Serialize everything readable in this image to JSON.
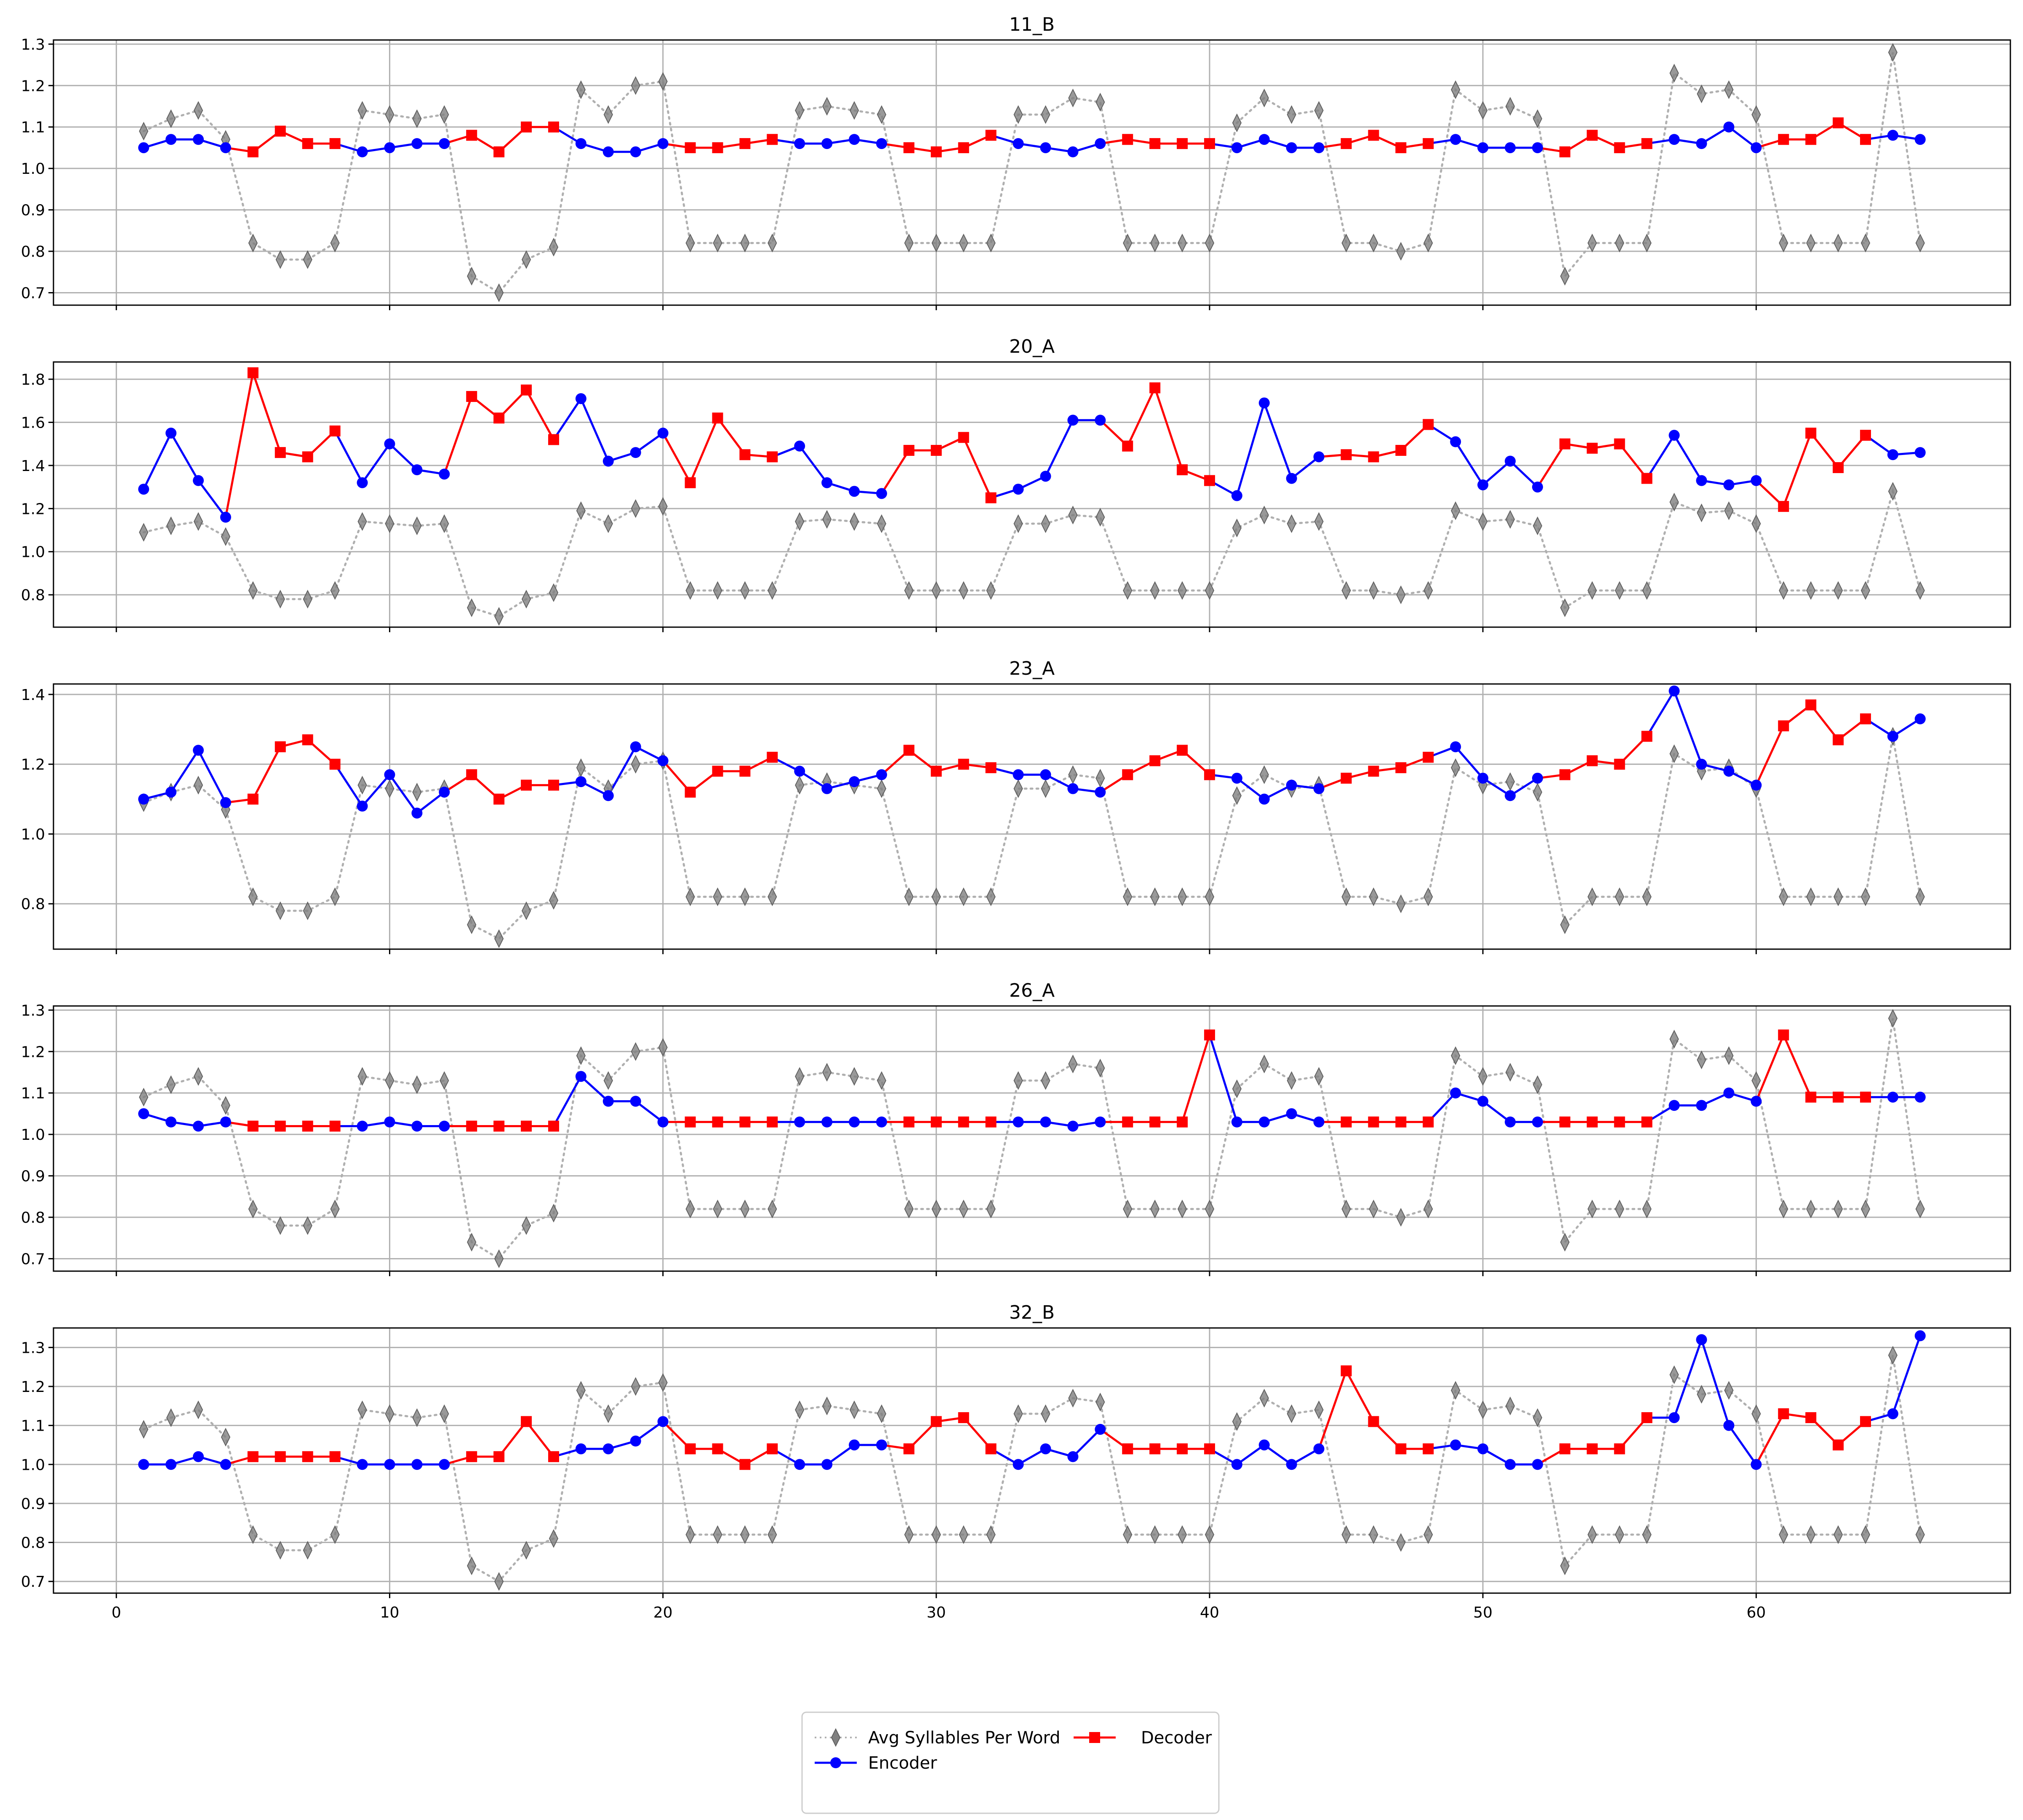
{
  "colors": {
    "avg": "#808080",
    "avg_line": "#b0b0b0",
    "encoder": "#0000ff",
    "decoder": "#ff0000",
    "grid": "#b0b0b0"
  },
  "legend": {
    "avg_label": "Avg Syllables Per Word",
    "encoder_label": "Encoder",
    "decoder_label": "Decoder",
    "placement": "bottom-center"
  },
  "chart_data": [
    {
      "type": "line",
      "title": "11_B",
      "ylim": [
        0.67,
        1.31
      ],
      "yticks": [
        0.7,
        0.8,
        0.9,
        1.0,
        1.1,
        1.2,
        1.3
      ],
      "xlim": [
        -2.3,
        69.3
      ],
      "xticks": [
        0,
        10,
        20,
        30,
        40,
        50,
        60
      ],
      "avg": [
        1.09,
        1.12,
        1.14,
        1.07,
        0.82,
        0.78,
        0.78,
        0.82,
        1.14,
        1.13,
        1.12,
        1.13,
        0.74,
        0.7,
        0.78,
        0.81,
        1.19,
        1.13,
        1.2,
        1.21,
        0.82,
        0.82,
        0.82,
        0.82,
        1.14,
        1.15,
        1.14,
        1.13,
        0.82,
        0.82,
        0.82,
        0.82,
        1.13,
        1.13,
        1.17,
        1.16,
        0.82,
        0.82,
        0.82,
        0.82,
        1.11,
        1.17,
        1.13,
        1.14,
        0.82,
        0.82,
        0.8,
        0.82,
        1.19,
        1.14,
        1.15,
        1.12,
        0.74,
        0.82,
        0.82,
        0.82,
        1.23,
        1.18,
        1.19,
        1.13,
        0.82,
        0.82,
        0.82,
        0.82,
        1.28,
        0.82
      ],
      "value": [
        1.05,
        1.07,
        1.07,
        1.05,
        1.04,
        1.09,
        1.06,
        1.06,
        1.04,
        1.05,
        1.06,
        1.06,
        1.08,
        1.04,
        1.1,
        1.1,
        1.06,
        1.04,
        1.04,
        1.06,
        1.05,
        1.05,
        1.06,
        1.07,
        1.06,
        1.06,
        1.07,
        1.06,
        1.05,
        1.04,
        1.05,
        1.08,
        1.06,
        1.05,
        1.04,
        1.06,
        1.07,
        1.06,
        1.06,
        1.06,
        1.05,
        1.07,
        1.05,
        1.05,
        1.06,
        1.08,
        1.05,
        1.06,
        1.07,
        1.05,
        1.05,
        1.05,
        1.04,
        1.08,
        1.05,
        1.06,
        1.07,
        1.06,
        1.1,
        1.05,
        1.07,
        1.07,
        1.11,
        1.07,
        1.08,
        1.07
      ],
      "role": "EEEEDDDDEEEEDDDDEEEEDDDDEEEEDDDDEEEEDDDDEEEEDDDDEEEEDDDDEEEEDDDDEE"
    },
    {
      "type": "line",
      "title": "20_A",
      "ylim": [
        0.65,
        1.88
      ],
      "yticks": [
        0.8,
        1.0,
        1.2,
        1.4,
        1.6,
        1.8
      ],
      "xlim": [
        -2.3,
        69.3
      ],
      "xticks": [
        0,
        10,
        20,
        30,
        40,
        50,
        60
      ],
      "avg": [
        1.09,
        1.12,
        1.14,
        1.07,
        0.82,
        0.78,
        0.78,
        0.82,
        1.14,
        1.13,
        1.12,
        1.13,
        0.74,
        0.7,
        0.78,
        0.81,
        1.19,
        1.13,
        1.2,
        1.21,
        0.82,
        0.82,
        0.82,
        0.82,
        1.14,
        1.15,
        1.14,
        1.13,
        0.82,
        0.82,
        0.82,
        0.82,
        1.13,
        1.13,
        1.17,
        1.16,
        0.82,
        0.82,
        0.82,
        0.82,
        1.11,
        1.17,
        1.13,
        1.14,
        0.82,
        0.82,
        0.8,
        0.82,
        1.19,
        1.14,
        1.15,
        1.12,
        0.74,
        0.82,
        0.82,
        0.82,
        1.23,
        1.18,
        1.19,
        1.13,
        0.82,
        0.82,
        0.82,
        0.82,
        1.28,
        0.82
      ],
      "value": [
        1.29,
        1.55,
        1.33,
        1.16,
        1.83,
        1.46,
        1.44,
        1.56,
        1.32,
        1.5,
        1.38,
        1.36,
        1.72,
        1.62,
        1.75,
        1.52,
        1.71,
        1.42,
        1.46,
        1.55,
        1.32,
        1.62,
        1.45,
        1.44,
        1.49,
        1.32,
        1.28,
        1.27,
        1.47,
        1.47,
        1.53,
        1.25,
        1.29,
        1.35,
        1.61,
        1.61,
        1.49,
        1.76,
        1.38,
        1.33,
        1.26,
        1.69,
        1.34,
        1.44,
        1.45,
        1.44,
        1.47,
        1.59,
        1.51,
        1.31,
        1.42,
        1.3,
        1.5,
        1.48,
        1.5,
        1.34,
        1.54,
        1.33,
        1.31,
        1.33,
        1.21,
        1.55,
        1.39,
        1.54,
        1.45,
        1.46
      ],
      "role": "EEEEDDDDEEEEDDDDEEEEDDDDEEEEDDDDEEEEDDDDEEEEDDDDEEEEDDDDEEEEDDDDEE"
    },
    {
      "type": "line",
      "title": "23_A",
      "ylim": [
        0.67,
        1.43
      ],
      "yticks": [
        0.8,
        1.0,
        1.2,
        1.4
      ],
      "xlim": [
        -2.3,
        69.3
      ],
      "xticks": [
        0,
        10,
        20,
        30,
        40,
        50,
        60
      ],
      "avg": [
        1.09,
        1.12,
        1.14,
        1.07,
        0.82,
        0.78,
        0.78,
        0.82,
        1.14,
        1.13,
        1.12,
        1.13,
        0.74,
        0.7,
        0.78,
        0.81,
        1.19,
        1.13,
        1.2,
        1.21,
        0.82,
        0.82,
        0.82,
        0.82,
        1.14,
        1.15,
        1.14,
        1.13,
        0.82,
        0.82,
        0.82,
        0.82,
        1.13,
        1.13,
        1.17,
        1.16,
        0.82,
        0.82,
        0.82,
        0.82,
        1.11,
        1.17,
        1.13,
        1.14,
        0.82,
        0.82,
        0.8,
        0.82,
        1.19,
        1.14,
        1.15,
        1.12,
        0.74,
        0.82,
        0.82,
        0.82,
        1.23,
        1.18,
        1.19,
        1.13,
        0.82,
        0.82,
        0.82,
        0.82,
        1.28,
        0.82
      ],
      "value": [
        1.1,
        1.12,
        1.24,
        1.09,
        1.1,
        1.25,
        1.27,
        1.2,
        1.08,
        1.17,
        1.06,
        1.12,
        1.17,
        1.1,
        1.14,
        1.14,
        1.15,
        1.11,
        1.25,
        1.21,
        1.12,
        1.18,
        1.18,
        1.22,
        1.18,
        1.13,
        1.15,
        1.17,
        1.24,
        1.18,
        1.2,
        1.19,
        1.17,
        1.17,
        1.13,
        1.12,
        1.17,
        1.21,
        1.24,
        1.17,
        1.16,
        1.1,
        1.14,
        1.13,
        1.16,
        1.18,
        1.19,
        1.22,
        1.25,
        1.16,
        1.11,
        1.16,
        1.17,
        1.21,
        1.2,
        1.28,
        1.41,
        1.2,
        1.18,
        1.14,
        1.31,
        1.37,
        1.27,
        1.33,
        1.28,
        1.33
      ],
      "role": "EEEEDDDDEEEEDDDDEEEEDDDDEEEEDDDDEEEEDDDDEEEEDDDDEEEEDDDDEEEEDDDDEE"
    },
    {
      "type": "line",
      "title": "26_A",
      "ylim": [
        0.67,
        1.31
      ],
      "yticks": [
        0.7,
        0.8,
        0.9,
        1.0,
        1.1,
        1.2,
        1.3
      ],
      "xlim": [
        -2.3,
        69.3
      ],
      "xticks": [
        0,
        10,
        20,
        30,
        40,
        50,
        60
      ],
      "avg": [
        1.09,
        1.12,
        1.14,
        1.07,
        0.82,
        0.78,
        0.78,
        0.82,
        1.14,
        1.13,
        1.12,
        1.13,
        0.74,
        0.7,
        0.78,
        0.81,
        1.19,
        1.13,
        1.2,
        1.21,
        0.82,
        0.82,
        0.82,
        0.82,
        1.14,
        1.15,
        1.14,
        1.13,
        0.82,
        0.82,
        0.82,
        0.82,
        1.13,
        1.13,
        1.17,
        1.16,
        0.82,
        0.82,
        0.82,
        0.82,
        1.11,
        1.17,
        1.13,
        1.14,
        0.82,
        0.82,
        0.8,
        0.82,
        1.19,
        1.14,
        1.15,
        1.12,
        0.74,
        0.82,
        0.82,
        0.82,
        1.23,
        1.18,
        1.19,
        1.13,
        0.82,
        0.82,
        0.82,
        0.82,
        1.28,
        0.82
      ],
      "value": [
        1.05,
        1.03,
        1.02,
        1.03,
        1.02,
        1.02,
        1.02,
        1.02,
        1.02,
        1.03,
        1.02,
        1.02,
        1.02,
        1.02,
        1.02,
        1.02,
        1.14,
        1.08,
        1.08,
        1.03,
        1.03,
        1.03,
        1.03,
        1.03,
        1.03,
        1.03,
        1.03,
        1.03,
        1.03,
        1.03,
        1.03,
        1.03,
        1.03,
        1.03,
        1.02,
        1.03,
        1.03,
        1.03,
        1.03,
        1.24,
        1.03,
        1.03,
        1.05,
        1.03,
        1.03,
        1.03,
        1.03,
        1.03,
        1.1,
        1.08,
        1.03,
        1.03,
        1.03,
        1.03,
        1.03,
        1.03,
        1.07,
        1.07,
        1.1,
        1.08,
        1.24,
        1.09,
        1.09,
        1.09,
        1.09,
        1.09
      ],
      "role": "EEEEDDDDEEEEDDDDEEEEDDDDEEEEDDDDEEEEDDDDEEEEDDDDEEEEDDDDEEEEDDDDEE"
    },
    {
      "type": "line",
      "title": "32_B",
      "ylim": [
        0.67,
        1.35
      ],
      "yticks": [
        0.7,
        0.8,
        0.9,
        1.0,
        1.1,
        1.2,
        1.3
      ],
      "xlim": [
        -2.3,
        69.3
      ],
      "xticks": [
        0,
        10,
        20,
        30,
        40,
        50,
        60
      ],
      "avg": [
        1.09,
        1.12,
        1.14,
        1.07,
        0.82,
        0.78,
        0.78,
        0.82,
        1.14,
        1.13,
        1.12,
        1.13,
        0.74,
        0.7,
        0.78,
        0.81,
        1.19,
        1.13,
        1.2,
        1.21,
        0.82,
        0.82,
        0.82,
        0.82,
        1.14,
        1.15,
        1.14,
        1.13,
        0.82,
        0.82,
        0.82,
        0.82,
        1.13,
        1.13,
        1.17,
        1.16,
        0.82,
        0.82,
        0.82,
        0.82,
        1.11,
        1.17,
        1.13,
        1.14,
        0.82,
        0.82,
        0.8,
        0.82,
        1.19,
        1.14,
        1.15,
        1.12,
        0.74,
        0.82,
        0.82,
        0.82,
        1.23,
        1.18,
        1.19,
        1.13,
        0.82,
        0.82,
        0.82,
        0.82,
        1.28,
        0.82
      ],
      "value": [
        1.0,
        1.0,
        1.02,
        1.0,
        1.02,
        1.02,
        1.02,
        1.02,
        1.0,
        1.0,
        1.0,
        1.0,
        1.02,
        1.02,
        1.11,
        1.02,
        1.04,
        1.04,
        1.06,
        1.11,
        1.04,
        1.04,
        1.0,
        1.04,
        1.0,
        1.0,
        1.05,
        1.05,
        1.04,
        1.11,
        1.12,
        1.04,
        1.0,
        1.04,
        1.02,
        1.09,
        1.04,
        1.04,
        1.04,
        1.04,
        1.0,
        1.05,
        1.0,
        1.04,
        1.24,
        1.11,
        1.04,
        1.04,
        1.05,
        1.04,
        1.0,
        1.0,
        1.04,
        1.04,
        1.04,
        1.12,
        1.12,
        1.32,
        1.1,
        1.0,
        1.13,
        1.12,
        1.05,
        1.11,
        1.13,
        1.33
      ],
      "role": "EEEEDDDDEEEEDDDDEEEEDDDDEEEEDDDDEEEEDDDDEEEEDDDDEEEEDDDDEEEEDDDDEE"
    }
  ]
}
